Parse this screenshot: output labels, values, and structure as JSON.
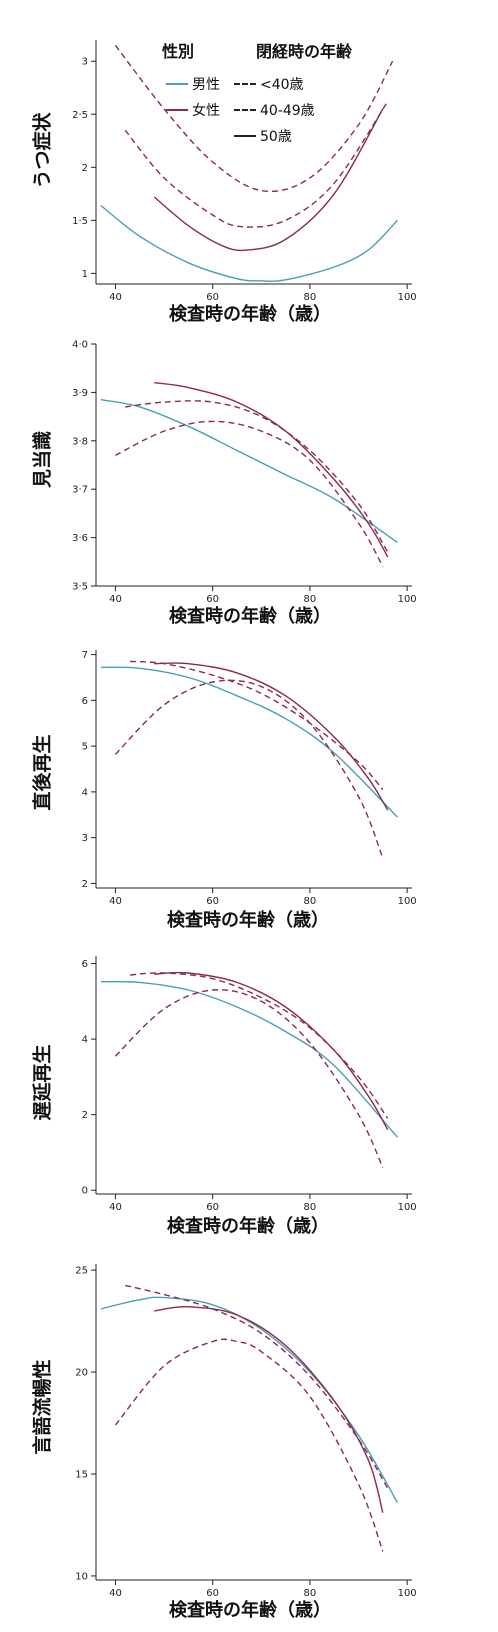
{
  "legend": {
    "sex_title": "性別",
    "menopause_title": "閉経時の年齢",
    "male_label": "男性",
    "female_label": "女性",
    "lt40_label": "<40歳",
    "age40_49_label": "40-49歳",
    "age50_label": "50歳",
    "colors": {
      "male": "#4a9eb5",
      "female": "#8b2a4e",
      "line": "#222222"
    }
  },
  "chart_data": [
    {
      "type": "line",
      "title": "",
      "xlabel": "検査時の年齢（歳）",
      "ylabel": "うつ症状",
      "xlim": [
        36,
        101
      ],
      "ylim": [
        0.9,
        3.2
      ],
      "xticks": [
        "40",
        "60",
        "80",
        "100"
      ],
      "yticks": [
        "1",
        "1·5",
        "2",
        "2·5",
        "3"
      ],
      "ytick_values": [
        1,
        1.5,
        2,
        2.5,
        3
      ],
      "series": [
        {
          "name": "男性",
          "color": "#4a9eb5",
          "style": "solid",
          "x": [
            37,
            45,
            55,
            65,
            70,
            75,
            85,
            92,
            98
          ],
          "y": [
            1.64,
            1.35,
            1.1,
            0.95,
            0.93,
            0.94,
            1.06,
            1.22,
            1.5
          ]
        },
        {
          "name": "女性 <40歳",
          "color": "#8b2a4e",
          "style": "dashed",
          "x": [
            40,
            50,
            60,
            70,
            80,
            90,
            97
          ],
          "y": [
            3.15,
            2.55,
            2.05,
            1.78,
            1.9,
            2.4,
            3.0
          ]
        },
        {
          "name": "女性 40-49歳",
          "color": "#8b2a4e",
          "style": "dashed",
          "x": [
            42,
            50,
            60,
            66,
            75,
            85,
            96
          ],
          "y": [
            2.35,
            1.9,
            1.55,
            1.44,
            1.5,
            1.85,
            2.62
          ]
        },
        {
          "name": "女性 50歳",
          "color": "#8b2a4e",
          "style": "solid",
          "x": [
            48,
            55,
            62,
            67,
            75,
            85,
            95
          ],
          "y": [
            1.72,
            1.45,
            1.26,
            1.22,
            1.32,
            1.75,
            2.55
          ]
        }
      ]
    },
    {
      "type": "line",
      "title": "",
      "xlabel": "検査時の年齢（歳）",
      "ylabel": "見当識",
      "xlim": [
        36,
        101
      ],
      "ylim": [
        3.5,
        4.0
      ],
      "xticks": [
        "40",
        "60",
        "80",
        "100"
      ],
      "yticks": [
        "3·5",
        "3·6",
        "3·7",
        "3·8",
        "3·9",
        "4·0"
      ],
      "ytick_values": [
        3.5,
        3.6,
        3.7,
        3.8,
        3.9,
        4.0
      ],
      "series": [
        {
          "name": "男性",
          "color": "#4a9eb5",
          "style": "solid",
          "x": [
            37,
            45,
            55,
            65,
            75,
            85,
            98
          ],
          "y": [
            3.885,
            3.87,
            3.83,
            3.78,
            3.73,
            3.68,
            3.59
          ]
        },
        {
          "name": "女性 <40歳",
          "color": "#8b2a4e",
          "style": "dashed",
          "x": [
            40,
            50,
            60,
            70,
            80,
            90,
            95
          ],
          "y": [
            3.77,
            3.82,
            3.84,
            3.82,
            3.76,
            3.63,
            3.54
          ]
        },
        {
          "name": "女性 40-49歳",
          "color": "#8b2a4e",
          "style": "dashed",
          "x": [
            42,
            50,
            60,
            70,
            80,
            90,
            96
          ],
          "y": [
            3.87,
            3.88,
            3.88,
            3.85,
            3.78,
            3.67,
            3.57
          ]
        },
        {
          "name": "女性 50歳",
          "color": "#8b2a4e",
          "style": "solid",
          "x": [
            48,
            55,
            65,
            75,
            85,
            92,
            96
          ],
          "y": [
            3.92,
            3.91,
            3.88,
            3.82,
            3.72,
            3.63,
            3.56
          ]
        }
      ]
    },
    {
      "type": "line",
      "title": "",
      "xlabel": "検査時の年齢（歳）",
      "ylabel": "直後再生",
      "xlim": [
        36,
        101
      ],
      "ylim": [
        1.9,
        7.1
      ],
      "xticks": [
        "40",
        "60",
        "80",
        "100"
      ],
      "yticks": [
        "2",
        "3",
        "4",
        "5",
        "6",
        "7"
      ],
      "ytick_values": [
        2,
        3,
        4,
        5,
        6,
        7
      ],
      "series": [
        {
          "name": "男性",
          "color": "#4a9eb5",
          "style": "solid",
          "x": [
            37,
            45,
            55,
            65,
            75,
            85,
            98
          ],
          "y": [
            6.72,
            6.7,
            6.5,
            6.1,
            5.6,
            4.85,
            3.45
          ]
        },
        {
          "name": "女性 <40歳",
          "color": "#8b2a4e",
          "style": "dashed",
          "x": [
            40,
            50,
            60,
            70,
            80,
            90,
            95
          ],
          "y": [
            4.82,
            5.9,
            6.4,
            6.3,
            5.5,
            3.9,
            2.55
          ]
        },
        {
          "name": "女性 40-49歳",
          "color": "#8b2a4e",
          "style": "dashed",
          "x": [
            43,
            50,
            60,
            70,
            80,
            90,
            95
          ],
          "y": [
            6.85,
            6.8,
            6.55,
            6.15,
            5.5,
            4.65,
            4.05
          ]
        },
        {
          "name": "女性 50歳",
          "color": "#8b2a4e",
          "style": "solid",
          "x": [
            48,
            55,
            65,
            75,
            85,
            92,
            96
          ],
          "y": [
            6.8,
            6.8,
            6.6,
            6.1,
            5.2,
            4.3,
            3.6
          ]
        }
      ]
    },
    {
      "type": "line",
      "title": "",
      "xlabel": "検査時の年齢（歳）",
      "ylabel": "遅延再生",
      "xlim": [
        36,
        101
      ],
      "ylim": [
        -0.1,
        6.2
      ],
      "xticks": [
        "40",
        "60",
        "80",
        "100"
      ],
      "yticks": [
        "0",
        "2",
        "4",
        "6"
      ],
      "ytick_values": [
        0,
        2,
        4,
        6
      ],
      "series": [
        {
          "name": "男性",
          "color": "#4a9eb5",
          "style": "solid",
          "x": [
            37,
            45,
            55,
            65,
            75,
            85,
            98
          ],
          "y": [
            5.52,
            5.5,
            5.3,
            4.85,
            4.2,
            3.3,
            1.4
          ]
        },
        {
          "name": "女性 <40歳",
          "color": "#8b2a4e",
          "style": "dashed",
          "x": [
            40,
            50,
            60,
            70,
            80,
            90,
            95
          ],
          "y": [
            3.55,
            4.8,
            5.3,
            5.0,
            3.9,
            2.0,
            0.6
          ]
        },
        {
          "name": "女性 40-49歳",
          "color": "#8b2a4e",
          "style": "dashed",
          "x": [
            43,
            50,
            60,
            70,
            80,
            90,
            96
          ],
          "y": [
            5.7,
            5.75,
            5.6,
            5.1,
            4.3,
            3.0,
            1.9
          ]
        },
        {
          "name": "女性 50歳",
          "color": "#8b2a4e",
          "style": "solid",
          "x": [
            48,
            55,
            65,
            75,
            85,
            92,
            96
          ],
          "y": [
            5.72,
            5.75,
            5.5,
            4.85,
            3.7,
            2.5,
            1.6
          ]
        }
      ]
    },
    {
      "type": "line",
      "title": "",
      "xlabel": "検査時の年齢（歳）",
      "ylabel": "言語流暢性",
      "xlim": [
        36,
        101
      ],
      "ylim": [
        9.8,
        25.3
      ],
      "xticks": [
        "40",
        "60",
        "80",
        "100"
      ],
      "yticks": [
        "10",
        "15",
        "20",
        "25"
      ],
      "ytick_values": [
        10,
        15,
        20,
        25
      ],
      "series": [
        {
          "name": "男性",
          "color": "#4a9eb5",
          "style": "solid",
          "x": [
            37,
            45,
            50,
            60,
            70,
            80,
            90,
            98
          ],
          "y": [
            23.1,
            23.55,
            23.65,
            23.3,
            22.1,
            20.0,
            16.9,
            13.6
          ]
        },
        {
          "name": "女性 <40歳",
          "color": "#8b2a4e",
          "style": "dashed",
          "x": [
            40,
            50,
            60,
            65,
            70,
            80,
            90,
            95
          ],
          "y": [
            17.4,
            20.3,
            21.5,
            21.5,
            21.0,
            18.8,
            14.5,
            11.2
          ]
        },
        {
          "name": "女性 40-49歳",
          "color": "#8b2a4e",
          "style": "dashed",
          "x": [
            42,
            50,
            60,
            70,
            80,
            90,
            96
          ],
          "y": [
            24.25,
            23.8,
            23.1,
            21.9,
            19.8,
            16.7,
            14.3
          ]
        },
        {
          "name": "女性 50歳",
          "color": "#8b2a4e",
          "style": "solid",
          "x": [
            48,
            55,
            65,
            75,
            85,
            92,
            95
          ],
          "y": [
            23.0,
            23.2,
            22.8,
            21.3,
            18.6,
            15.7,
            13.1
          ]
        }
      ]
    }
  ]
}
